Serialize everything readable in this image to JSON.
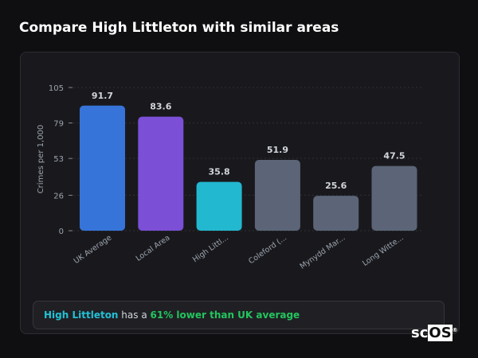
{
  "title": "Compare High Littleton with similar areas",
  "chart_data": {
    "type": "bar",
    "categories": [
      "UK Average",
      "Local Area",
      "High Littl...",
      "Coleford (...",
      "Mynydd Mar...",
      "Long Witte..."
    ],
    "values": [
      91.7,
      83.6,
      35.8,
      51.9,
      25.6,
      47.5
    ],
    "value_labels": [
      "91.7",
      "83.6",
      "35.8",
      "51.9",
      "25.6",
      "47.5"
    ],
    "colors": [
      "#3674d9",
      "#7b4fd6",
      "#22b8cf",
      "#5b6577",
      "#5b6577",
      "#5b6577"
    ],
    "ylabel": "Crimes per 1,000",
    "xlabel": "",
    "ylim": [
      0,
      105
    ],
    "yticks": [
      0,
      26,
      53,
      79,
      105
    ],
    "grid": true
  },
  "footer": {
    "area": "High Littleton",
    "middle": " has a ",
    "highlight": "61% lower than UK average"
  },
  "logo": {
    "text_a": "sc",
    "text_b": "OS",
    "mark": "®"
  }
}
